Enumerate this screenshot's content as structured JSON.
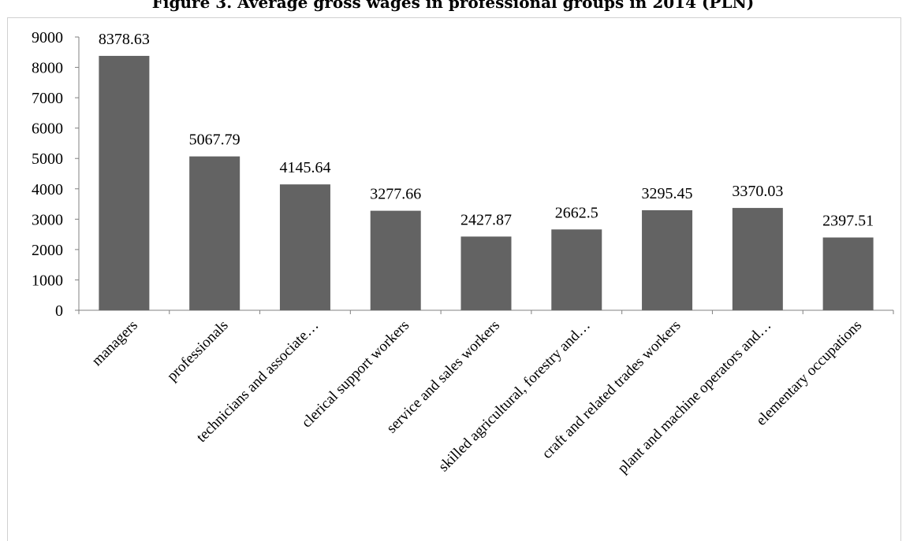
{
  "chart_title": "Figure 3. Average gross wages in professional groups in 2014 (PLN)",
  "colors": {
    "bar": "#636363",
    "axis": "#808080"
  },
  "chart_data": {
    "type": "bar",
    "title": "Figure 3. Average gross wages in professional groups in 2014 (PLN)",
    "xlabel": "",
    "ylabel": "",
    "ylim": [
      0,
      9000
    ],
    "yticks": [
      0,
      1000,
      2000,
      3000,
      4000,
      5000,
      6000,
      7000,
      8000,
      9000
    ],
    "grid": false,
    "legend": "none",
    "categories": [
      "managers",
      "professionals",
      "technicians and associate…",
      "clerical support workers",
      "service and sales workers",
      "skilled agricultural, forestry and…",
      "craft and related trades workers",
      "plant and machine operators and…",
      "elementary occupations"
    ],
    "values": [
      8378.63,
      5067.79,
      4145.64,
      3277.66,
      2427.87,
      2662.5,
      3295.45,
      3370.03,
      2397.51
    ],
    "value_labels": [
      "8378.63",
      "5067.79",
      "4145.64",
      "3277.66",
      "2427.87",
      "2662.5",
      "3295.45",
      "3370.03",
      "2397.51"
    ]
  }
}
